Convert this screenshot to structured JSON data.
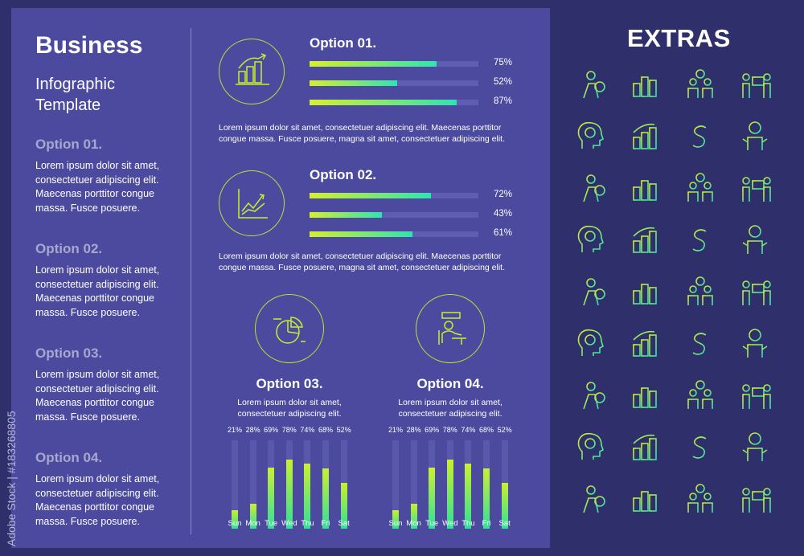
{
  "header": {
    "title": "Business",
    "subtitle": "Infographic Template"
  },
  "sidebar": {
    "items": [
      {
        "title": "Option 01.",
        "text": "Lorem ipsum dolor sit amet, consectetuer adipiscing elit. Maecenas porttitor congue massa. Fusce posuere."
      },
      {
        "title": "Option 02.",
        "text": "Lorem ipsum dolor sit amet, consectetuer adipiscing elit. Maecenas porttitor congue massa. Fusce posuere."
      },
      {
        "title": "Option 03.",
        "text": "Lorem ipsum dolor sit amet, consectetuer adipiscing elit. Maecenas porttitor congue massa. Fusce posuere."
      },
      {
        "title": "Option 04.",
        "text": "Lorem ipsum dolor sit amet, consectetuer adipiscing elit. Maecenas porttitor congue massa. Fusce posuere."
      }
    ]
  },
  "main": {
    "option1": {
      "title": "Option 01.",
      "bars": [
        {
          "value": 75,
          "label": "75%"
        },
        {
          "value": 52,
          "label": "52%"
        },
        {
          "value": 87,
          "label": "87%"
        }
      ],
      "text": "Lorem ipsum dolor sit amet, consectetuer adipiscing elit. Maecenas porttitor congue massa. Fusce posuere, magna sit amet, consectetuer adipiscing elit.",
      "icon": "bar-chart-growth-icon"
    },
    "option2": {
      "title": "Option 02.",
      "bars": [
        {
          "value": 72,
          "label": "72%"
        },
        {
          "value": 43,
          "label": "43%"
        },
        {
          "value": 61,
          "label": "61%"
        }
      ],
      "text": "Lorem ipsum dolor sit amet, consectetuer adipiscing elit. Maecenas porttitor congue massa. Fusce posuere, magna sit amet, consectetuer adipiscing elit.",
      "icon": "line-chart-growth-icon"
    },
    "option3": {
      "title": "Option 03.",
      "text": "Lorem ipsum dolor sit amet, consectetuer adipiscing elit.",
      "icon": "pie-chart-icon"
    },
    "option4": {
      "title": "Option 04.",
      "text": "Lorem ipsum dolor sit amet, consectetuer adipiscing elit.",
      "icon": "person-at-desk-icon"
    }
  },
  "chart_data": [
    {
      "type": "bar",
      "categories": [
        "Sun",
        "Mon",
        "Tue",
        "Wed",
        "Thu",
        "Fri",
        "Sat"
      ],
      "values": [
        21,
        28,
        69,
        78,
        74,
        68,
        52
      ],
      "labels": [
        "21%",
        "28%",
        "69%",
        "78%",
        "74%",
        "68%",
        "52%"
      ],
      "ylim": [
        0,
        100
      ]
    },
    {
      "type": "bar",
      "categories": [
        "Sun",
        "Mon",
        "Tue",
        "Wed",
        "Thu",
        "Fri",
        "Sat"
      ],
      "values": [
        21,
        28,
        69,
        78,
        74,
        68,
        52
      ],
      "labels": [
        "21%",
        "28%",
        "69%",
        "78%",
        "74%",
        "68%",
        "52%"
      ],
      "ylim": [
        0,
        100
      ]
    }
  ],
  "extras": {
    "title": "EXTRAS",
    "icons": [
      "businessman-money-icon",
      "bar-chart-icon",
      "team-gears-icon",
      "presentation-icon",
      "head-clock-icon",
      "growth-chart-icon",
      "dollar-sign-icon",
      "businessman-icon",
      "head-lightbulb-icon",
      "scatter-chart-icon",
      "speaker-board-icon",
      "manager-icon",
      "line-chart-icon",
      "board-chart-icon",
      "team-meeting-icon",
      "winner-icon",
      "pie-chart-icon",
      "presenter-icon",
      "diamond-icon",
      "heart-icon",
      "shield-dollar-icon",
      "triangle-arrow-icon",
      "money-bag-icon",
      "piggy-bank-icon",
      "calendar-clock-icon",
      "person-pie-icon",
      "coins-dollar-icon",
      "desk-worker-icon",
      "credit-card-icon",
      "monitor-chart-icon",
      "store-icon",
      "avatar-glasses-icon",
      "dollar-cycle-icon",
      "briefcase-dollar-icon",
      "globe-dollar-icon",
      "team-chart-icon"
    ]
  },
  "watermark": {
    "vertical_text": "Adobe Stock | #183268805"
  },
  "colors": {
    "background": "#2e2f6b",
    "panel": "#4b4a9f",
    "accent_start": "#d6ef2c",
    "accent_end": "#30e3b2"
  }
}
